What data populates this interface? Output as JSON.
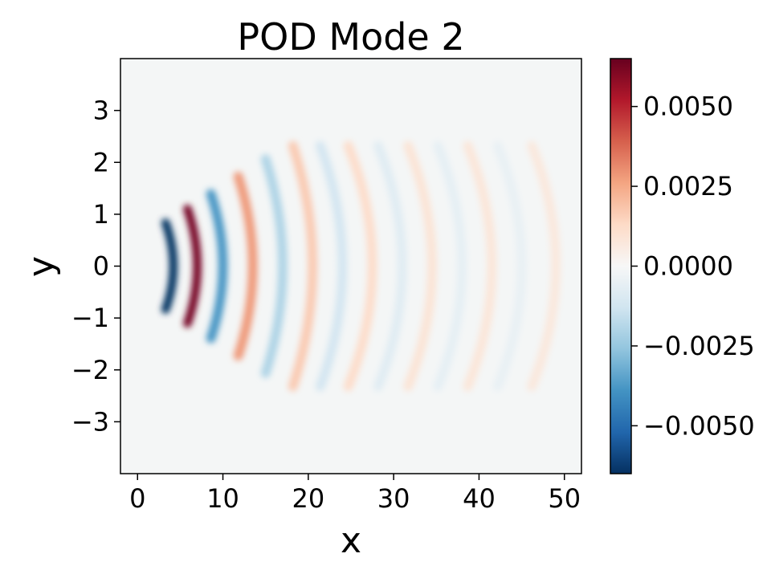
{
  "chart_data": {
    "type": "heatmap",
    "title": "POD Mode 2",
    "xlabel": "x",
    "ylabel": "y",
    "xlim": [
      -2,
      52
    ],
    "ylim": [
      -4,
      4
    ],
    "x_ticks": [
      0,
      10,
      20,
      30,
      40,
      50
    ],
    "x_tick_labels": [
      "0",
      "10",
      "20",
      "30",
      "40",
      "50"
    ],
    "y_ticks": [
      -3,
      -2,
      -1,
      0,
      1,
      2,
      3
    ],
    "y_tick_labels": [
      "−3",
      "−2",
      "−1",
      "0",
      "1",
      "2",
      "3"
    ],
    "colormap": "RdBu_r",
    "colorbar": {
      "range": [
        -0.0065,
        0.0065
      ],
      "ticks": [
        -0.005,
        -0.0025,
        0.0,
        0.0025,
        0.005
      ],
      "tick_labels": [
        "−0.0050",
        "−0.0025",
        "0.0000",
        "0.0025",
        "0.0050"
      ]
    },
    "field_extrema": [
      {
        "x": 4.2,
        "y": 0,
        "value": -0.0065
      },
      {
        "x": 7.0,
        "y": 0,
        "value": 0.0063
      },
      {
        "x": 10.0,
        "y": 0,
        "value": -0.0038
      },
      {
        "x": 13.5,
        "y": 0,
        "value": 0.0028
      },
      {
        "x": 17.0,
        "y": 0,
        "value": -0.002
      },
      {
        "x": 20.5,
        "y": 0,
        "value": 0.0017
      },
      {
        "x": 24.0,
        "y": 0,
        "value": -0.0012
      },
      {
        "x": 27.5,
        "y": 0,
        "value": 0.0012
      },
      {
        "x": 31.0,
        "y": 0,
        "value": -0.0008
      },
      {
        "x": 34.5,
        "y": 0,
        "value": 0.0009
      },
      {
        "x": 38.0,
        "y": 0,
        "value": -0.0006
      },
      {
        "x": 41.5,
        "y": 0,
        "value": 0.0008
      },
      {
        "x": 45.0,
        "y": 0,
        "value": -0.0005
      },
      {
        "x": 49.0,
        "y": 0,
        "value": 0.0007
      }
    ]
  }
}
